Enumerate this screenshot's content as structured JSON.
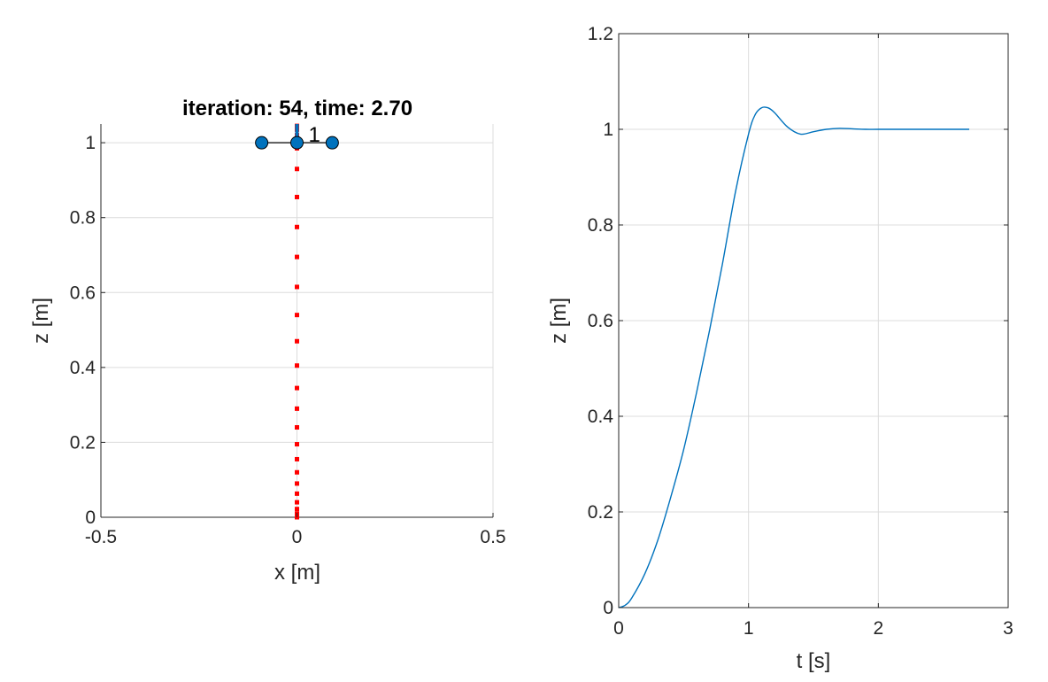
{
  "colors": {
    "series_line": "#0072BD",
    "trajectory_dots": "#FF0000",
    "vehicle_fill": "#0072BD",
    "axes": "#262626",
    "grid": "#DCDCDC"
  },
  "chart_data": [
    {
      "type": "scatter",
      "title": "iteration: 54, time: 2.70",
      "xlabel": "x [m]",
      "ylabel": "z [m]",
      "xlim": [
        -0.5,
        0.5
      ],
      "ylim": [
        0,
        1.05
      ],
      "xticks": [
        -0.5,
        0,
        0.5
      ],
      "xtick_labels": [
        "-0.5",
        "0",
        "0.5"
      ],
      "yticks": [
        0,
        0.2,
        0.4,
        0.6,
        0.8,
        1
      ],
      "ytick_labels": [
        "0",
        "0.2",
        "0.4",
        "0.6",
        "0.8",
        "1"
      ],
      "grid": true,
      "box": false,
      "trajectory": {
        "x": [
          0,
          0,
          0,
          0,
          0,
          0,
          0,
          0,
          0,
          0,
          0,
          0,
          0,
          0,
          0,
          0,
          0,
          0,
          0,
          0,
          0,
          0,
          0,
          0,
          0,
          0,
          0
        ],
        "z": [
          0.0,
          0.003,
          0.01,
          0.022,
          0.04,
          0.063,
          0.09,
          0.12,
          0.155,
          0.195,
          0.24,
          0.29,
          0.345,
          0.405,
          0.47,
          0.54,
          0.615,
          0.695,
          0.775,
          0.855,
          0.93,
          0.985,
          1.02,
          1.04,
          1.045,
          1.035,
          1.02
        ]
      },
      "vehicle": {
        "label": "1",
        "rotors_x": [
          -0.09,
          0,
          0.09
        ],
        "z": 1.0,
        "thrust_top_z": 1.05
      }
    },
    {
      "type": "line",
      "xlabel": "t [s]",
      "ylabel": "z [m]",
      "xlim": [
        0,
        3
      ],
      "ylim": [
        0,
        1.2
      ],
      "xticks": [
        0,
        1,
        2,
        3
      ],
      "xtick_labels": [
        "0",
        "1",
        "2",
        "3"
      ],
      "yticks": [
        0,
        0.2,
        0.4,
        0.6,
        0.8,
        1,
        1.2
      ],
      "ytick_labels": [
        "0",
        "0.2",
        "0.4",
        "0.6",
        "0.8",
        "1",
        "1.2"
      ],
      "grid": true,
      "box": true,
      "series": [
        {
          "x": [
            0,
            0.05,
            0.1,
            0.2,
            0.3,
            0.4,
            0.5,
            0.6,
            0.7,
            0.8,
            0.9,
            1.0,
            1.05,
            1.1,
            1.15,
            1.2,
            1.3,
            1.4,
            1.5,
            1.6,
            1.7,
            1.8,
            1.9,
            2.0,
            2.2,
            2.4,
            2.6,
            2.7
          ],
          "values": [
            0,
            0.005,
            0.02,
            0.07,
            0.14,
            0.23,
            0.33,
            0.45,
            0.58,
            0.72,
            0.87,
            0.99,
            1.03,
            1.045,
            1.045,
            1.035,
            1.005,
            0.99,
            0.995,
            1.0,
            1.002,
            1.001,
            1.0,
            1.0,
            1.0,
            1.0,
            1.0,
            1.0
          ]
        }
      ]
    }
  ]
}
